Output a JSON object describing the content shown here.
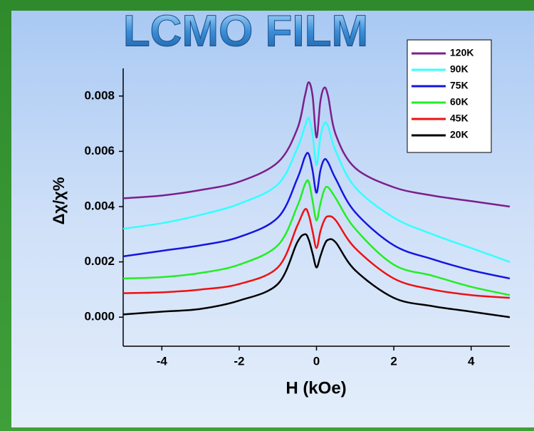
{
  "chart_data": {
    "type": "line",
    "title": "LCMO FILM",
    "x_label": "H (kOe)",
    "y_label": "Δχ/χ%",
    "x": [
      -5,
      -4,
      -3,
      -2,
      -1,
      -0.5,
      -0.3,
      -0.2,
      -0.1,
      0,
      0.1,
      0.2,
      0.3,
      0.5,
      1,
      2,
      3,
      4,
      5
    ],
    "series": [
      {
        "name": "120K",
        "color": "#7b1f8c",
        "values": [
          0.0043,
          0.0044,
          0.0046,
          0.0049,
          0.0056,
          0.0068,
          0.008,
          0.0085,
          0.008,
          0.0065,
          0.0078,
          0.0083,
          0.008,
          0.0066,
          0.0054,
          0.0047,
          0.0044,
          0.0042,
          0.004
        ]
      },
      {
        "name": "90K",
        "color": "#33ffff",
        "values": [
          0.0032,
          0.0034,
          0.0037,
          0.0041,
          0.0048,
          0.0061,
          0.0069,
          0.0072,
          0.0066,
          0.0055,
          0.0065,
          0.007,
          0.0069,
          0.006,
          0.0047,
          0.0036,
          0.003,
          0.0025,
          0.002
        ]
      },
      {
        "name": "75K",
        "color": "#1515e0",
        "values": [
          0.0022,
          0.0024,
          0.0026,
          0.0029,
          0.0036,
          0.005,
          0.0058,
          0.0059,
          0.0053,
          0.0045,
          0.0053,
          0.0057,
          0.0056,
          0.005,
          0.0038,
          0.0026,
          0.0021,
          0.0017,
          0.0014
        ]
      },
      {
        "name": "60K",
        "color": "#22ee22",
        "values": [
          0.0014,
          0.00145,
          0.0016,
          0.0019,
          0.0026,
          0.004,
          0.0048,
          0.0049,
          0.0042,
          0.0035,
          0.0041,
          0.0046,
          0.0047,
          0.0043,
          0.0032,
          0.0019,
          0.0015,
          0.0011,
          0.0008
        ]
      },
      {
        "name": "45K",
        "color": "#ee1111",
        "values": [
          0.00087,
          0.0009,
          0.001,
          0.0012,
          0.0018,
          0.0033,
          0.0039,
          0.0037,
          0.0031,
          0.0025,
          0.0031,
          0.0035,
          0.00365,
          0.0035,
          0.0025,
          0.0014,
          0.001,
          0.0008,
          0.0007
        ]
      },
      {
        "name": "20K",
        "color": "#000000",
        "values": [
          0.0001,
          0.0002,
          0.0003,
          0.0006,
          0.0012,
          0.0027,
          0.003,
          0.0028,
          0.0023,
          0.0018,
          0.0022,
          0.0026,
          0.0028,
          0.0027,
          0.0017,
          0.0007,
          0.0004,
          0.0002,
          0.0
        ]
      }
    ],
    "xlim": [
      -5,
      5
    ],
    "xticks": [
      -4,
      -2,
      0,
      2,
      4
    ],
    "ylim": [
      -0.00105,
      0.009
    ],
    "yticks": [
      {
        "value": 0,
        "label": "0.000"
      },
      {
        "value": 0.002,
        "label": "0.002"
      },
      {
        "value": 0.004,
        "label": "0.004"
      },
      {
        "value": 0.006,
        "label": "0.006"
      },
      {
        "value": 0.008,
        "label": "0.008"
      }
    ],
    "legend": "upper right"
  }
}
